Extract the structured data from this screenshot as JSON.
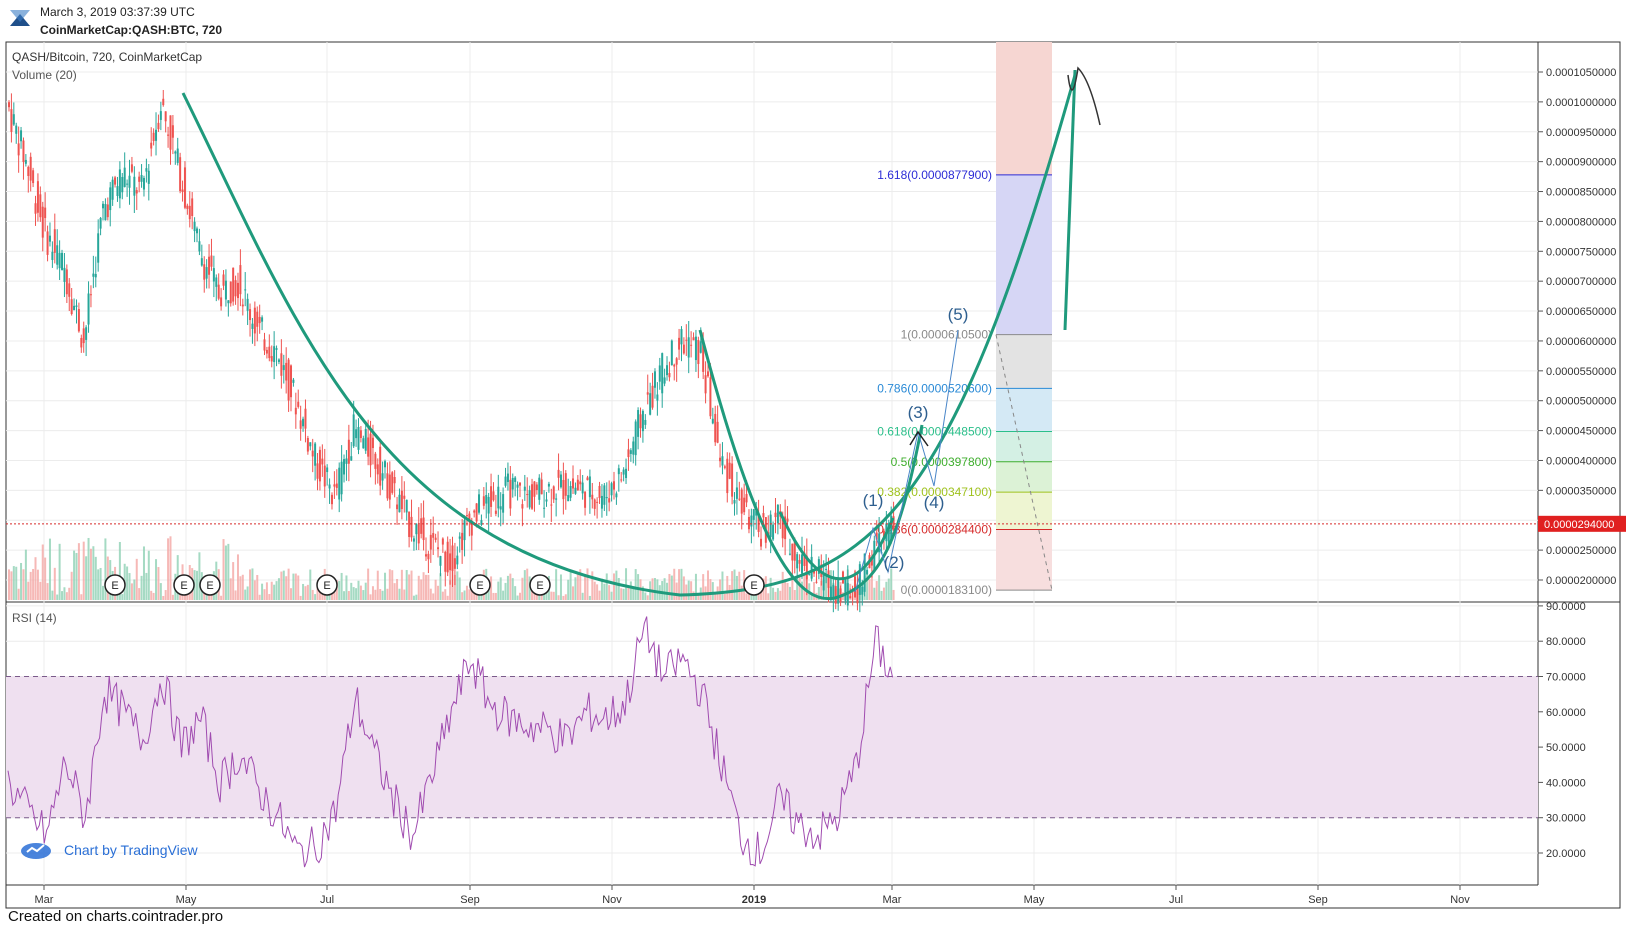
{
  "header": {
    "timestamp": "March 3, 2019 03:37:39 UTC",
    "symbol_line": "CoinMarketCap:QASH:BTC, 720"
  },
  "footer": {
    "created_text": "Created on charts.cointrader.pro"
  },
  "credit": {
    "text": "Chart by TradingView"
  },
  "chart_data": {
    "type": "line",
    "title": "QASH/Bitcoin, 720, CoinMarketCap",
    "volume_label": "Volume (20)",
    "rsi_label": "RSI (14)",
    "price_axis_ticks": [
      "0.0001050000",
      "0.0001000000",
      "0.0000950000",
      "0.0000900000",
      "0.0000850000",
      "0.0000800000",
      "0.0000750000",
      "0.0000700000",
      "0.0000650000",
      "0.0000600000",
      "0.0000550000",
      "0.0000500000",
      "0.0000450000",
      "0.0000400000",
      "0.0000350000",
      "0.0000300000",
      "0.0000250000",
      "0.0000200000"
    ],
    "price_ylim": [
      1.7e-05,
      0.00011
    ],
    "current_price_label": "0.0000294000",
    "current_price": 2.94e-05,
    "rsi_axis_ticks": [
      "90.0000",
      "80.0000",
      "70.0000",
      "60.0000",
      "50.0000",
      "40.0000",
      "30.0000",
      "20.0000"
    ],
    "rsi_ylim": [
      12,
      90
    ],
    "rsi_bands": [
      30,
      70
    ],
    "x_tick_labels": [
      "Mar",
      "May",
      "Jul",
      "Sep",
      "Nov",
      "2019",
      "Mar",
      "May",
      "Jul",
      "Sep",
      "Nov"
    ],
    "earnings_markers": [
      "E",
      "E",
      "E",
      "E",
      "E",
      "E",
      "E"
    ],
    "fib_levels": [
      {
        "ratio": "1.618",
        "price": 8.779e-05,
        "label": "1.618(0.0000877900)",
        "color": "#2b2bd6"
      },
      {
        "ratio": "1",
        "price": 6.105e-05,
        "label": "1(0.0000610500)",
        "color": "#8a8a8a"
      },
      {
        "ratio": "0.786",
        "price": 5.206e-05,
        "label": "0.786(0.0000520600)",
        "color": "#2a8ad6"
      },
      {
        "ratio": "0.618",
        "price": 4.485e-05,
        "label": "0.618(0.0000448500)",
        "color": "#2bbf8a"
      },
      {
        "ratio": "0.5",
        "price": 3.978e-05,
        "label": "0.5(0.0000397800)",
        "color": "#3fae2e"
      },
      {
        "ratio": "0.382",
        "price": 3.471e-05,
        "label": "0.382(0.0000347100)",
        "color": "#9fc21e"
      },
      {
        "ratio": "0.236",
        "price": 2.844e-05,
        "label": "0.236(0.0000284400)",
        "color": "#d62b2b"
      },
      {
        "ratio": "0",
        "price": 1.831e-05,
        "label": "0(0.0000183100)",
        "color": "#8a8a8a"
      }
    ],
    "wave_labels": [
      "(1)",
      "(2)",
      "(3)",
      "(4)",
      "(5)"
    ],
    "price_series_approx": [
      0.0001,
      9e-05,
      7.8e-05,
      7.2e-05,
      6e-05,
      8.2e-05,
      8.8e-05,
      8.5e-05,
      0.0001,
      8.8e-05,
      7.5e-05,
      6.8e-05,
      7e-05,
      6.2e-05,
      5.8e-05,
      5e-05,
      4e-05,
      3.4e-05,
      4.5e-05,
      4.1e-05,
      3.5e-05,
      2.9e-05,
      2.6e-05,
      2.3e-05,
      3e-05,
      3.3e-05,
      3.5e-05,
      3.4e-05,
      3.5e-05,
      3.6e-05,
      3.5e-05,
      3.4e-05,
      3.8e-05,
      4.8e-05,
      5.5e-05,
      6e-05,
      5.8e-05,
      4e-05,
      3.3e-05,
      2.8e-05,
      3e-05,
      2.4e-05,
      2.1e-05,
      1.9e-05,
      1.8e-05,
      2.5e-05,
      2.9e-05
    ],
    "rsi_series_approx": [
      40,
      32,
      25,
      46,
      30,
      66,
      60,
      52,
      70,
      50,
      58,
      40,
      48,
      38,
      30,
      20,
      22,
      32,
      64,
      48,
      35,
      25,
      42,
      60,
      75,
      62,
      58,
      56,
      55,
      52,
      60,
      58,
      62,
      84,
      70,
      75,
      65,
      45,
      25,
      20,
      35,
      28,
      25,
      30,
      45,
      80,
      68
    ],
    "grid": true
  }
}
